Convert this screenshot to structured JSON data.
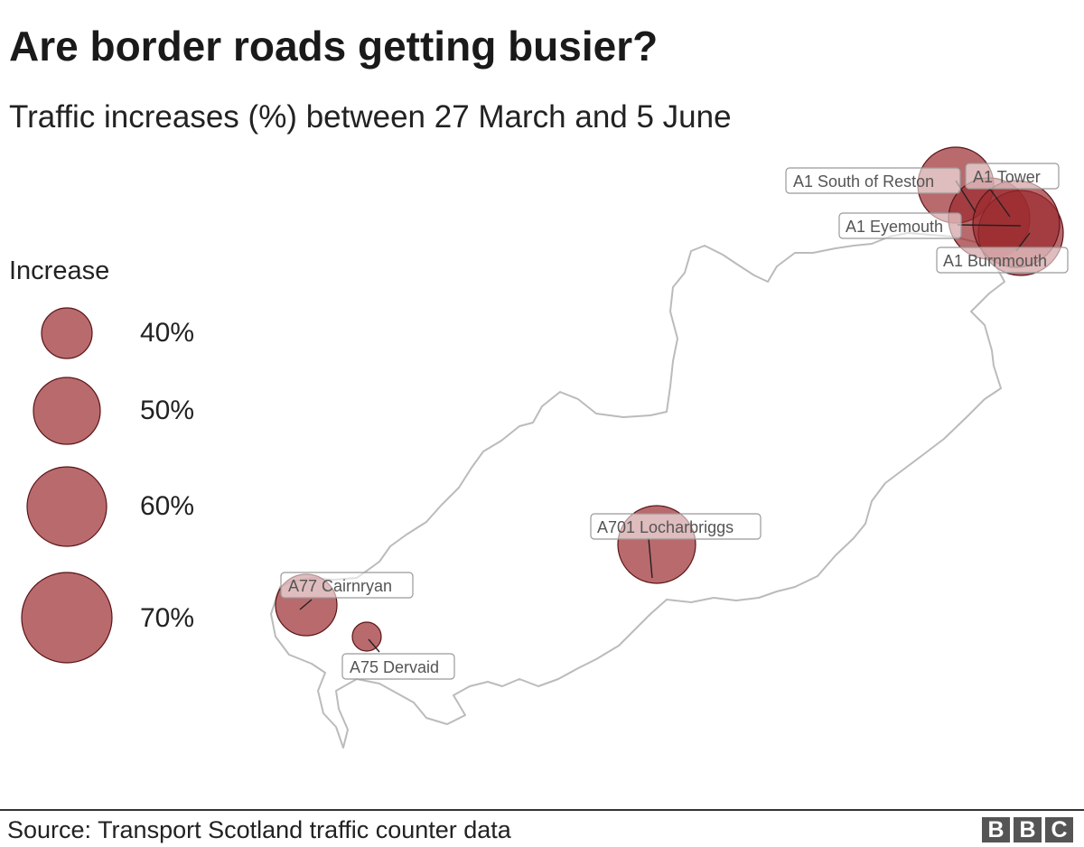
{
  "title": "Are border roads getting busier?",
  "subtitle": "Traffic increases (%) between 27 March and 5 June",
  "legend": {
    "title": "Increase",
    "items": [
      {
        "label": "40%",
        "value": 40
      },
      {
        "label": "50%",
        "value": 50
      },
      {
        "label": "60%",
        "value": 60
      },
      {
        "label": "70%",
        "value": 70
      }
    ]
  },
  "sites": [
    {
      "name": "A1 South of Reston"
    },
    {
      "name": "A1 Tower"
    },
    {
      "name": "A1 Eyemouth"
    },
    {
      "name": "A1 Burnmouth"
    },
    {
      "name": "A701 Locharbriggs"
    },
    {
      "name": "A77 Cairnryan"
    },
    {
      "name": "A75 Dervaid"
    }
  ],
  "colors": {
    "bubble_fill": "#9b2b2f",
    "bubble_stroke": "#5a1518",
    "outline": "#bbbbbb"
  },
  "footer": {
    "source": "Source: Transport Scotland traffic counter data",
    "logo_letters": [
      "B",
      "B",
      "C"
    ]
  }
}
